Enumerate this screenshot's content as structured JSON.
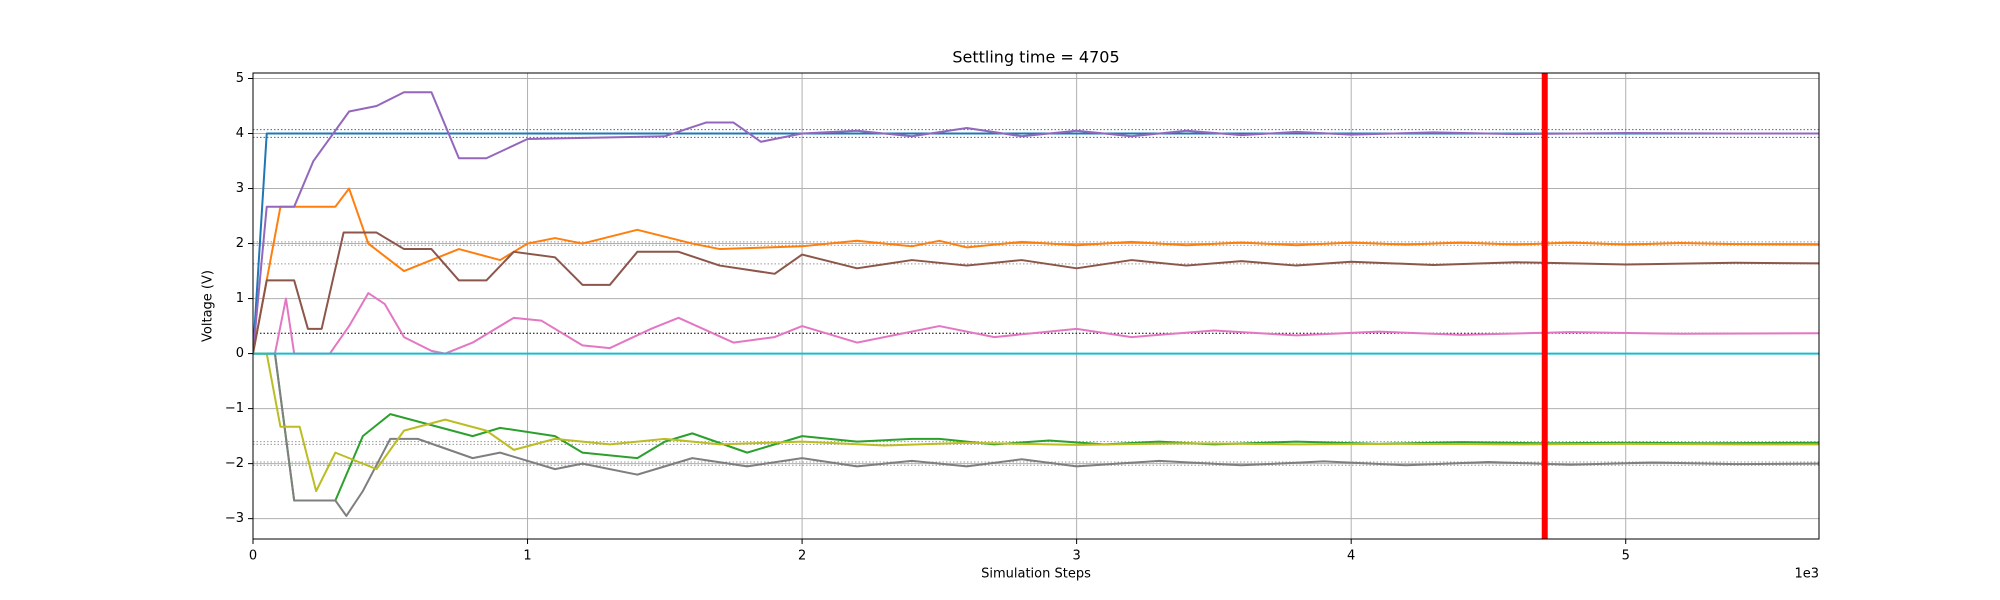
{
  "chart_data": {
    "type": "line",
    "title": "Settling time = 4705",
    "xlabel": "Simulation Steps",
    "ylabel": "Voltage (V)",
    "x_offset_label": "1e3",
    "xlim": [
      0,
      5704
    ],
    "ylim": [
      -3.37,
      5.1
    ],
    "xticks": [
      {
        "value": 0,
        "label": "0"
      },
      {
        "value": 1000,
        "label": "1"
      },
      {
        "value": 2000,
        "label": "2"
      },
      {
        "value": 3000,
        "label": "3"
      },
      {
        "value": 4000,
        "label": "4"
      },
      {
        "value": 5000,
        "label": "5"
      }
    ],
    "yticks": [
      {
        "value": -3,
        "label": "−3"
      },
      {
        "value": -2,
        "label": "−2"
      },
      {
        "value": -1,
        "label": "−1"
      },
      0,
      1,
      2,
      3,
      4,
      5
    ],
    "grid": true,
    "reference_lines": [
      {
        "value": 4.07,
        "color": "#1f77b4"
      },
      {
        "value": 3.93,
        "color": "#1f77b4"
      },
      {
        "value": 2.03,
        "color": "#999999"
      },
      {
        "value": 1.97,
        "color": "#999999"
      },
      {
        "value": 1.63,
        "color": "#999999"
      },
      {
        "value": 0.37,
        "color": "#000000"
      },
      {
        "value": -1.6,
        "color": "#999999"
      },
      {
        "value": -1.65,
        "color": "#999999"
      },
      {
        "value": -1.97,
        "color": "#999999"
      },
      {
        "value": -2.03,
        "color": "#999999"
      }
    ],
    "vlines": [
      {
        "value": 4705,
        "color": "#ff0000"
      }
    ],
    "series": [
      {
        "color": "#1f77b4",
        "x": [
          0,
          50,
          5704
        ],
        "values": [
          0,
          4,
          4
        ]
      },
      {
        "color": "#ff7f0e",
        "x": [
          0,
          100,
          300,
          350,
          420,
          550,
          750,
          900,
          1000,
          1100,
          1200,
          1400,
          1600,
          1700,
          2000,
          2200,
          2400,
          2500,
          2600,
          2800,
          3000,
          3200,
          3400,
          3600,
          3800,
          4000,
          4200,
          4400,
          4600,
          4800,
          5000,
          5200,
          5400,
          5704
        ],
        "values": [
          0,
          2.67,
          2.67,
          3.0,
          2.0,
          1.5,
          1.9,
          1.7,
          2.0,
          2.1,
          2.0,
          2.25,
          2.0,
          1.9,
          1.95,
          2.05,
          1.95,
          2.05,
          1.93,
          2.03,
          1.97,
          2.03,
          1.97,
          2.02,
          1.97,
          2.02,
          1.98,
          2.02,
          1.98,
          2.02,
          1.98,
          2.01,
          1.99,
          1.98
        ]
      },
      {
        "color": "#2ca02c",
        "x": [
          0,
          80,
          150,
          300,
          400,
          500,
          650,
          800,
          900,
          1100,
          1200,
          1400,
          1500,
          1600,
          1800,
          2000,
          2200,
          2400,
          2500,
          2700,
          2900,
          3100,
          3300,
          3500,
          3800,
          4100,
          4400,
          4700,
          5000,
          5300,
          5704
        ],
        "values": [
          0,
          0,
          -2.67,
          -2.67,
          -1.5,
          -1.1,
          -1.3,
          -1.5,
          -1.35,
          -1.5,
          -1.8,
          -1.9,
          -1.6,
          -1.45,
          -1.8,
          -1.5,
          -1.6,
          -1.55,
          -1.55,
          -1.65,
          -1.58,
          -1.65,
          -1.6,
          -1.65,
          -1.6,
          -1.64,
          -1.61,
          -1.63,
          -1.62,
          -1.63,
          -1.62
        ]
      },
      {
        "color": "#9467bd",
        "x": [
          0,
          50,
          150,
          220,
          350,
          450,
          550,
          650,
          750,
          850,
          1000,
          1500,
          1650,
          1750,
          1850,
          2000,
          2200,
          2400,
          2600,
          2800,
          3000,
          3200,
          3400,
          3600,
          3800,
          4000,
          4300,
          4600,
          5000,
          5400,
          5704
        ],
        "values": [
          0,
          2.67,
          2.67,
          3.5,
          4.4,
          4.5,
          4.75,
          4.75,
          3.55,
          3.55,
          3.9,
          3.95,
          4.2,
          4.2,
          3.85,
          4.0,
          4.05,
          3.95,
          4.1,
          3.95,
          4.05,
          3.95,
          4.05,
          3.97,
          4.03,
          3.98,
          4.02,
          3.99,
          4.01,
          4.0,
          4.0
        ]
      },
      {
        "color": "#8c564b",
        "x": [
          0,
          50,
          150,
          200,
          250,
          330,
          450,
          550,
          650,
          750,
          850,
          950,
          1100,
          1200,
          1300,
          1400,
          1550,
          1700,
          1900,
          2000,
          2200,
          2400,
          2600,
          2800,
          3000,
          3200,
          3400,
          3600,
          3800,
          4000,
          4300,
          4600,
          5000,
          5400,
          5704
        ],
        "values": [
          0,
          1.33,
          1.33,
          0.45,
          0.45,
          2.2,
          2.2,
          1.9,
          1.9,
          1.33,
          1.33,
          1.85,
          1.75,
          1.25,
          1.25,
          1.85,
          1.85,
          1.6,
          1.45,
          1.8,
          1.55,
          1.7,
          1.6,
          1.7,
          1.55,
          1.7,
          1.6,
          1.68,
          1.6,
          1.67,
          1.61,
          1.66,
          1.62,
          1.65,
          1.64
        ]
      },
      {
        "color": "#e377c2",
        "x": [
          80,
          120,
          150,
          280,
          350,
          420,
          480,
          550,
          650,
          700,
          800,
          950,
          1050,
          1200,
          1300,
          1450,
          1550,
          1750,
          1900,
          2000,
          2200,
          2500,
          2700,
          3000,
          3200,
          3500,
          3800,
          4100,
          4400,
          4800,
          5200,
          5704
        ],
        "values": [
          0,
          1.0,
          0,
          0,
          0.5,
          1.1,
          0.9,
          0.3,
          0.05,
          0,
          0.2,
          0.65,
          0.6,
          0.15,
          0.1,
          0.45,
          0.65,
          0.2,
          0.3,
          0.5,
          0.2,
          0.5,
          0.3,
          0.45,
          0.3,
          0.42,
          0.33,
          0.4,
          0.34,
          0.39,
          0.36,
          0.37
        ]
      },
      {
        "color": "#7f7f7f",
        "x": [
          0,
          80,
          150,
          300,
          340,
          400,
          500,
          600,
          800,
          900,
          1100,
          1200,
          1400,
          1600,
          1800,
          2000,
          2200,
          2400,
          2600,
          2800,
          3000,
          3300,
          3600,
          3900,
          4200,
          4500,
          4800,
          5100,
          5400,
          5704
        ],
        "values": [
          0,
          0,
          -2.67,
          -2.67,
          -2.95,
          -2.5,
          -1.55,
          -1.55,
          -1.9,
          -1.8,
          -2.1,
          -2.0,
          -2.2,
          -1.9,
          -2.05,
          -1.9,
          -2.05,
          -1.95,
          -2.05,
          -1.92,
          -2.05,
          -1.95,
          -2.03,
          -1.96,
          -2.03,
          -1.97,
          -2.02,
          -1.98,
          -2.01,
          -2.0
        ]
      },
      {
        "color": "#bcbd22",
        "x": [
          0,
          50,
          100,
          170,
          230,
          300,
          450,
          550,
          700,
          850,
          950,
          1100,
          1300,
          1500,
          1700,
          2000,
          2300,
          2600,
          3000,
          3400,
          3800,
          4200,
          4600,
          5000,
          5400,
          5704
        ],
        "values": [
          0,
          0,
          -1.33,
          -1.33,
          -2.5,
          -1.8,
          -2.1,
          -1.4,
          -1.2,
          -1.4,
          -1.75,
          -1.55,
          -1.65,
          -1.55,
          -1.65,
          -1.6,
          -1.67,
          -1.62,
          -1.66,
          -1.63,
          -1.65,
          -1.64,
          -1.65,
          -1.64,
          -1.65,
          -1.65
        ]
      },
      {
        "color": "#17becf",
        "x": [
          0,
          5704
        ],
        "values": [
          0,
          0
        ]
      }
    ]
  }
}
